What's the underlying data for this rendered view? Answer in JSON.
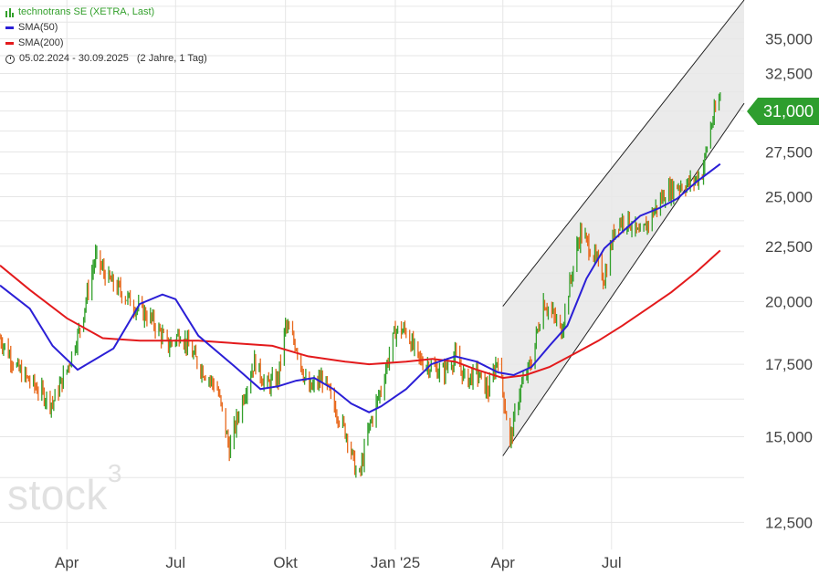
{
  "legend": {
    "instrument": "technotrans SE (XETRA, Last)",
    "sma50": "SMA(50)",
    "sma200": "SMA(200)",
    "period": "05.02.2024 - 30.09.2025",
    "interval": "(2 Jahre, 1 Tag)"
  },
  "last_price_label": "31,000",
  "watermark": {
    "text": "stock",
    "sup": "3"
  },
  "colors": {
    "up": "#33a02c",
    "down": "#e8681c",
    "sma50": "#2b1fd6",
    "sma200": "#e31a1c",
    "channel_fill": "#e8e8e8",
    "channel_line": "#222222",
    "grid": "#e6e6e6",
    "last_price_bg": "#2e9e2e"
  },
  "chart_data": {
    "type": "line",
    "y_scale": "log",
    "ylim": [
      11800,
      38000
    ],
    "xlim": [
      "2024-02-05",
      "2025-10-20"
    ],
    "y_ticks": [
      {
        "value": 12500,
        "label": "12,500"
      },
      {
        "value": 15000,
        "label": "15,000"
      },
      {
        "value": 17500,
        "label": "17,500"
      },
      {
        "value": 20000,
        "label": "20,000"
      },
      {
        "value": 22500,
        "label": "22,500"
      },
      {
        "value": 25000,
        "label": "25,000"
      },
      {
        "value": 27500,
        "label": "27,500"
      },
      {
        "value": 30000,
        "label": "30,000"
      },
      {
        "value": 32500,
        "label": "32,500"
      },
      {
        "value": 35000,
        "label": "35,000"
      }
    ],
    "x_ticks": [
      {
        "date": "2024-04-01",
        "label": "Apr"
      },
      {
        "date": "2024-07-01",
        "label": "Jul"
      },
      {
        "date": "2024-10-01",
        "label": "Okt"
      },
      {
        "date": "2025-01-01",
        "label": "Jan '25"
      },
      {
        "date": "2025-04-01",
        "label": "Apr"
      },
      {
        "date": "2025-07-01",
        "label": "Jul"
      }
    ],
    "price": {
      "name": "technotrans SE (XETRA, Last)",
      "dates": [
        "2024-02-05",
        "2024-02-20",
        "2024-03-05",
        "2024-03-20",
        "2024-04-01",
        "2024-04-12",
        "2024-04-25",
        "2024-05-05",
        "2024-05-15",
        "2024-05-28",
        "2024-06-10",
        "2024-06-25",
        "2024-07-05",
        "2024-07-20",
        "2024-08-05",
        "2024-08-15",
        "2024-08-25",
        "2024-09-05",
        "2024-09-15",
        "2024-09-25",
        "2024-10-01",
        "2024-10-10",
        "2024-10-20",
        "2024-11-01",
        "2024-11-12",
        "2024-11-22",
        "2024-12-01",
        "2024-12-10",
        "2024-12-20",
        "2025-01-01",
        "2025-01-10",
        "2025-01-20",
        "2025-01-31",
        "2025-02-10",
        "2025-02-20",
        "2025-03-01",
        "2025-03-10",
        "2025-03-20",
        "2025-03-28",
        "2025-04-01",
        "2025-04-07",
        "2025-04-15",
        "2025-04-25",
        "2025-05-05",
        "2025-05-12",
        "2025-05-20",
        "2025-05-28",
        "2025-06-05",
        "2025-06-15",
        "2025-06-25",
        "2025-07-05",
        "2025-07-15",
        "2025-07-25",
        "2025-08-05",
        "2025-08-15",
        "2025-08-25",
        "2025-09-05",
        "2025-09-15",
        "2025-09-22",
        "2025-09-30"
      ],
      "values": [
        18500,
        17300,
        16700,
        16100,
        17300,
        18900,
        22000,
        21000,
        20500,
        19800,
        19300,
        18200,
        18700,
        17500,
        16600,
        14600,
        16100,
        17600,
        16700,
        17000,
        19000,
        18200,
        16500,
        17000,
        15900,
        15000,
        13600,
        15300,
        16600,
        18800,
        18800,
        17700,
        17400,
        17200,
        17800,
        16900,
        17200,
        16500,
        17800,
        16500,
        14800,
        16500,
        17600,
        20000,
        19500,
        18800,
        21000,
        23200,
        22200,
        21000,
        23700,
        23800,
        22900,
        24200,
        25200,
        25600,
        25700,
        26300,
        29000,
        31000
      ]
    },
    "sma50": {
      "name": "SMA(50)",
      "dates": [
        "2024-02-05",
        "2024-03-01",
        "2024-03-20",
        "2024-04-10",
        "2024-05-10",
        "2024-06-01",
        "2024-06-20",
        "2024-07-01",
        "2024-07-20",
        "2024-08-20",
        "2024-09-10",
        "2024-09-25",
        "2024-10-10",
        "2024-10-25",
        "2024-11-10",
        "2024-11-25",
        "2024-12-10",
        "2024-12-20",
        "2025-01-10",
        "2025-01-31",
        "2025-02-20",
        "2025-03-10",
        "2025-03-28",
        "2025-04-10",
        "2025-04-25",
        "2025-05-10",
        "2025-05-25",
        "2025-06-10",
        "2025-06-25",
        "2025-07-10",
        "2025-07-25",
        "2025-08-10",
        "2025-08-25",
        "2025-09-10",
        "2025-09-30"
      ],
      "values": [
        20700,
        19700,
        18200,
        17300,
        18100,
        19900,
        20300,
        20100,
        18600,
        17400,
        16600,
        16700,
        16900,
        17000,
        16600,
        16100,
        15800,
        16000,
        16600,
        17500,
        17800,
        17600,
        17200,
        17100,
        17400,
        18200,
        19000,
        21000,
        22400,
        23200,
        24000,
        24400,
        24900,
        25800,
        26800
      ]
    },
    "sma200": {
      "name": "SMA(200)",
      "dates": [
        "2024-02-05",
        "2024-03-01",
        "2024-04-01",
        "2024-05-01",
        "2024-06-01",
        "2024-06-20",
        "2024-07-20",
        "2024-08-20",
        "2024-09-20",
        "2024-10-20",
        "2024-11-20",
        "2024-12-10",
        "2025-01-10",
        "2025-02-01",
        "2025-02-20",
        "2025-03-10",
        "2025-04-01",
        "2025-04-20",
        "2025-05-10",
        "2025-05-31",
        "2025-06-20",
        "2025-07-10",
        "2025-07-31",
        "2025-08-20",
        "2025-09-10",
        "2025-09-30"
      ],
      "values": [
        21600,
        20500,
        19300,
        18500,
        18400,
        18400,
        18400,
        18300,
        18200,
        17800,
        17600,
        17500,
        17600,
        17700,
        17600,
        17300,
        17000,
        17100,
        17400,
        17900,
        18400,
        19000,
        19700,
        20400,
        21300,
        22300
      ]
    },
    "channel": {
      "upper": [
        {
          "date": "2025-04-01",
          "value": 19800
        },
        {
          "date": "2025-10-20",
          "value": 38000
        }
      ],
      "lower": [
        {
          "date": "2025-04-01",
          "value": 14400
        },
        {
          "date": "2025-10-20",
          "value": 30500
        }
      ],
      "note": ""
    },
    "last_price": 31000
  }
}
